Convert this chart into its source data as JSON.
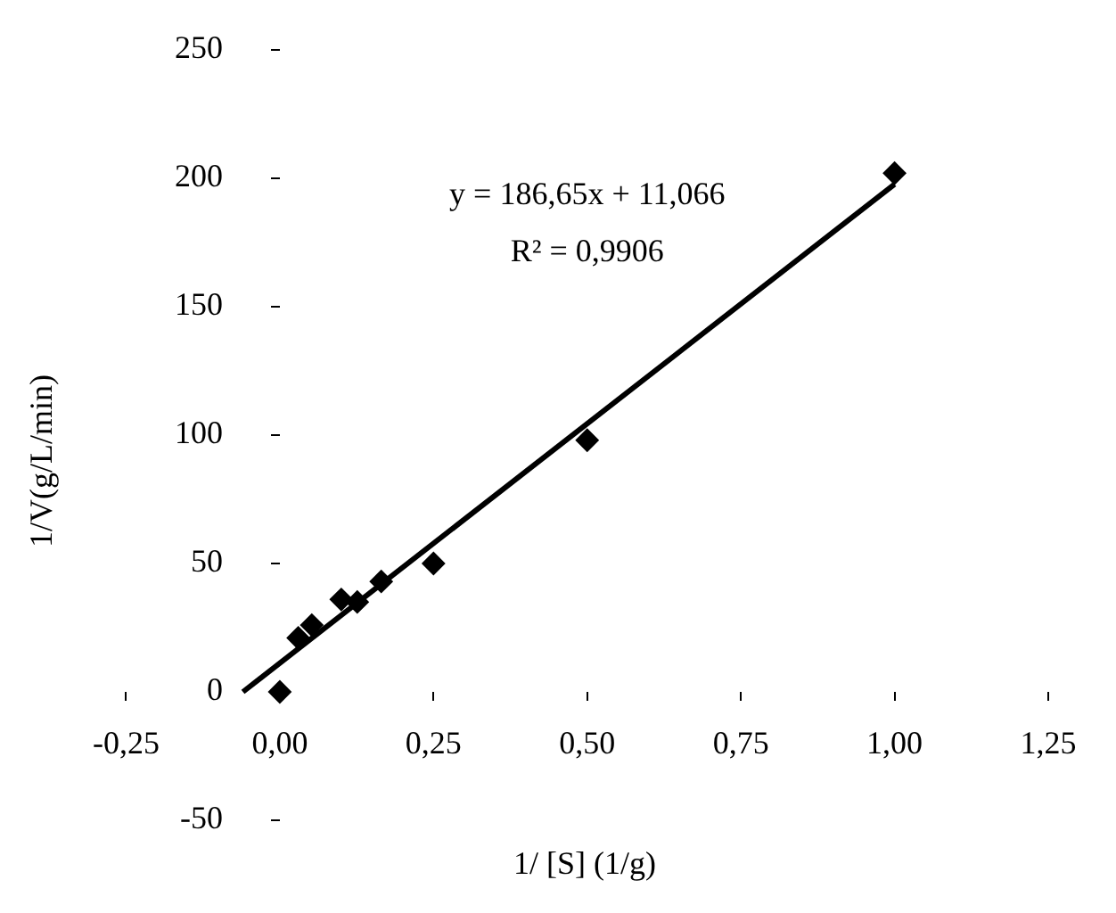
{
  "chart_data": {
    "type": "scatter",
    "xlabel": "1/ [S] (1/g)",
    "ylabel": "1/V(g/L/min)",
    "annotations": [
      "y = 186,65x + 11,066",
      "R² = 0,9906"
    ],
    "series": [
      {
        "type": "scatter",
        "color": "#000000",
        "marker": "diamond",
        "x": [
          0,
          0.03,
          0.052,
          0.1,
          0.126,
          0.165,
          0.25,
          0.5,
          1.0
        ],
        "values": [
          0,
          21,
          26,
          36,
          35,
          43,
          50,
          98,
          202
        ]
      },
      {
        "type": "line",
        "color": "#000000",
        "marker": "none",
        "line_style": "solid",
        "x": [
          -0.06,
          1.0
        ],
        "values": [
          0,
          197.7
        ]
      }
    ],
    "xlim": [
      -0.25,
      1.25
    ],
    "xticks": [
      {
        "value": -0.25,
        "label": "-0,25"
      },
      {
        "value": 0,
        "label": "0,00"
      },
      {
        "value": 0.25,
        "label": "0,25"
      },
      {
        "value": 0.5,
        "label": "0,50"
      },
      {
        "value": 0.75,
        "label": "0,75"
      },
      {
        "value": 1,
        "label": "1,00"
      },
      {
        "value": 1.25,
        "label": "1,25"
      }
    ],
    "ylim": [
      -50,
      250
    ],
    "yticks": [
      -50,
      0,
      50,
      100,
      150,
      200,
      250
    ],
    "grid": false,
    "legend": false
  }
}
